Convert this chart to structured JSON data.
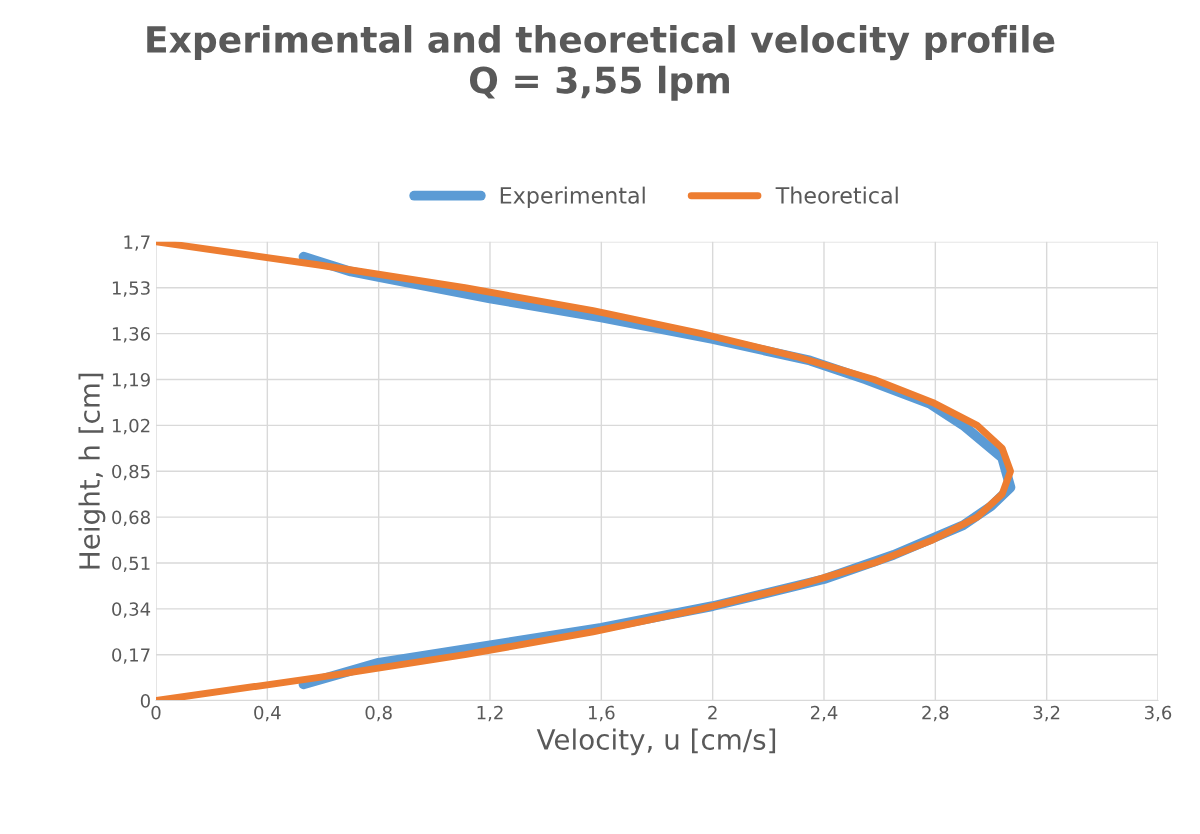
{
  "chart_data": {
    "type": "line",
    "title": "Experimental and theoretical velocity profile\nQ = 3,55 lpm",
    "xlabel": "Velocity, u [cm/s]",
    "ylabel": "Height, h [cm]",
    "xlim": [
      0,
      3.6
    ],
    "ylim": [
      0,
      1.7
    ],
    "xticks": [
      0,
      {
        "value": 0.4,
        "label": "0,4"
      },
      {
        "value": 0.8,
        "label": "0,8"
      },
      {
        "value": 1.2,
        "label": "1,2"
      },
      {
        "value": 1.6,
        "label": "1,6"
      },
      2,
      {
        "value": 2.4,
        "label": "2,4"
      },
      {
        "value": 2.8,
        "label": "2,8"
      },
      {
        "value": 3.2,
        "label": "3,2"
      },
      {
        "value": 3.6,
        "label": "3,6"
      }
    ],
    "yticks": [
      0,
      {
        "value": 0.17,
        "label": "0,17"
      },
      {
        "value": 0.34,
        "label": "0,34"
      },
      {
        "value": 0.51,
        "label": "0,51"
      },
      {
        "value": 0.68,
        "label": "0,68"
      },
      {
        "value": 0.85,
        "label": "0,85"
      },
      {
        "value": 1.02,
        "label": "1,02"
      },
      {
        "value": 1.19,
        "label": "1,19"
      },
      {
        "value": 1.36,
        "label": "1,36"
      },
      {
        "value": 1.53,
        "label": "1,53"
      },
      {
        "value": 1.7,
        "label": "1,7"
      }
    ],
    "grid": true,
    "legend": "top",
    "marker": "none",
    "line_style": "solid",
    "series": [
      {
        "name": "Experimental",
        "color": "#5b9bd5",
        "x": [
          0.53,
          0.8,
          1.6,
          2.0,
          2.4,
          2.65,
          2.9,
          3.0,
          3.07,
          3.04,
          2.9,
          2.78,
          2.55,
          2.35,
          2.0,
          1.6,
          1.2,
          0.8,
          0.7,
          0.53
        ],
        "values": [
          0.06,
          0.14,
          0.27,
          0.35,
          0.45,
          0.54,
          0.65,
          0.72,
          0.79,
          0.9,
          1.02,
          1.1,
          1.19,
          1.26,
          1.34,
          1.42,
          1.49,
          1.57,
          1.59,
          1.645
        ]
      },
      {
        "name": "Theoretical",
        "color": "#ed7d31",
        "x": [
          0,
          0.58,
          1.11,
          1.57,
          1.96,
          2.3,
          2.58,
          2.79,
          2.95,
          3.04,
          3.07,
          3.04,
          2.95,
          2.79,
          2.58,
          2.3,
          1.96,
          1.57,
          1.11,
          0.58,
          0
        ],
        "values": [
          0,
          0.085,
          0.17,
          0.255,
          0.34,
          0.425,
          0.51,
          0.595,
          0.68,
          0.765,
          0.85,
          0.935,
          1.02,
          1.105,
          1.19,
          1.275,
          1.36,
          1.445,
          1.53,
          1.615,
          1.7
        ]
      }
    ]
  }
}
